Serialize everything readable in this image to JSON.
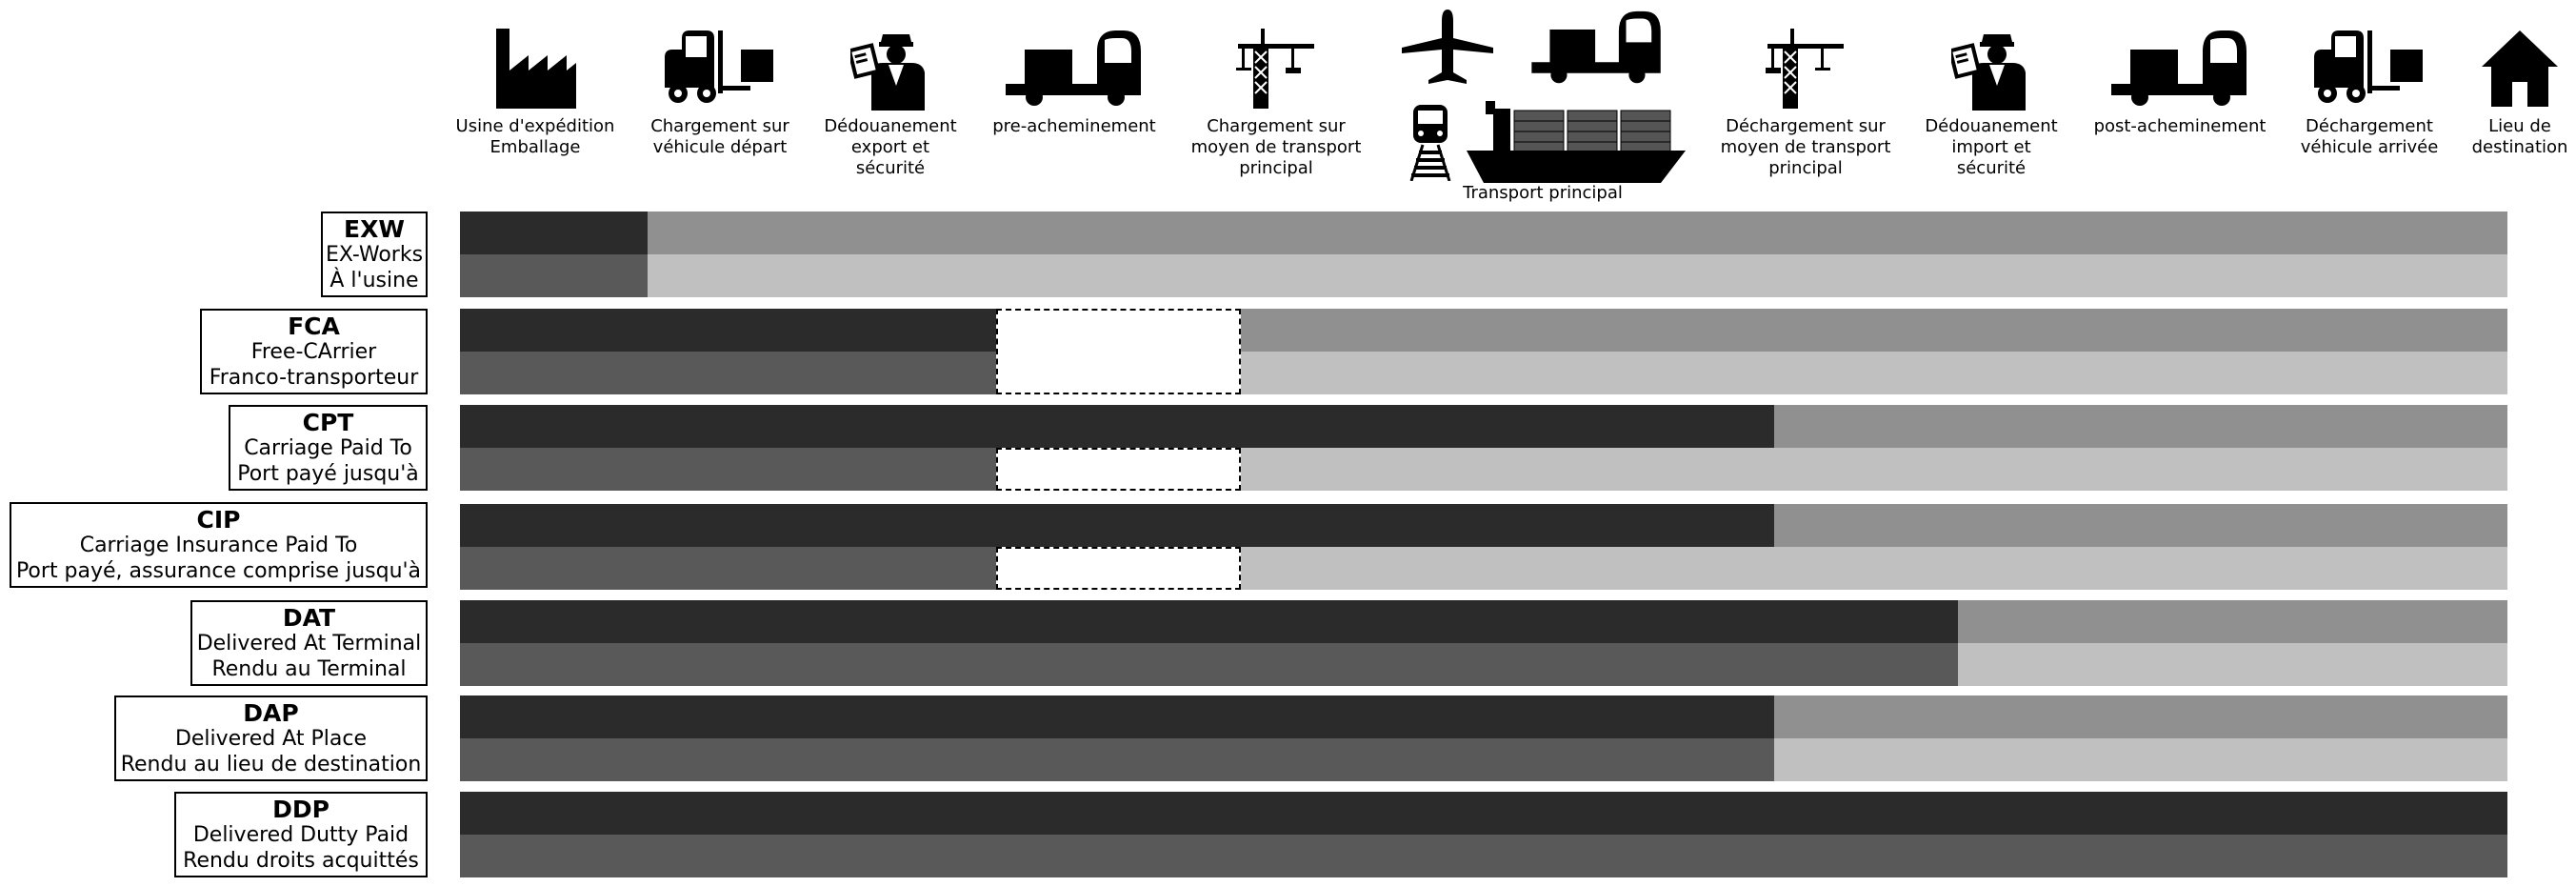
{
  "stages": [
    {
      "key": "factory",
      "label": "Usine d'expédition\nEmballage",
      "icon": "factory-icon"
    },
    {
      "key": "loading",
      "label": "Chargement sur\nvéhicule départ",
      "icon": "forklift-icon"
    },
    {
      "key": "export",
      "label": "Dédouanement\nexport et\nsécurité",
      "icon": "customs-officer-icon"
    },
    {
      "key": "pre",
      "label": "pre-acheminement",
      "icon": "truck-icon"
    },
    {
      "key": "load-main",
      "label": "Chargement sur\nmoyen de transport\nprincipal",
      "icon": "crane-icon"
    },
    {
      "key": "main",
      "label": "Transport principal",
      "icon": "main-transport-icons"
    },
    {
      "key": "unload-main",
      "label": "Déchargement sur\nmoyen de transport\nprincipal",
      "icon": "crane-icon"
    },
    {
      "key": "import",
      "label": "Dédouanement\nimport et\nsécurité",
      "icon": "customs-officer-icon"
    },
    {
      "key": "post",
      "label": "post-acheminement",
      "icon": "truck-icon"
    },
    {
      "key": "unloading",
      "label": "Déchargement\nvéhicule arrivée",
      "icon": "forklift-icon"
    },
    {
      "key": "dest",
      "label": "Lieu de\ndestination",
      "icon": "house-icon"
    }
  ],
  "terms": [
    {
      "code": "EXW",
      "en": "EX-Works",
      "fr": "À l'usine",
      "cost_split": 0.0917,
      "risk_split": 0.0917,
      "insurance_box": false
    },
    {
      "code": "FCA",
      "en": "Free-CArrier",
      "fr": "Franco-transporteur",
      "cost_split": 0.3813,
      "risk_split": 0.3813,
      "insurance_box": true
    },
    {
      "code": "CPT",
      "en": "Carriage Paid To",
      "fr": "Port payé jusqu'à",
      "cost_split": 0.6419,
      "risk_split": 0.2619,
      "insurance_box": true
    },
    {
      "code": "CIP",
      "en": "Carriage Insurance Paid To",
      "fr": "Port payé, assurance comprise jusqu'à",
      "cost_split": 0.6419,
      "risk_split": 0.2619,
      "insurance_box": true
    },
    {
      "code": "DAT",
      "en": "Delivered At Terminal",
      "fr": "Rendu au Terminal",
      "cost_split": 0.7316,
      "risk_split": 0.7316,
      "insurance_box": false
    },
    {
      "code": "DAP",
      "en": "Delivered At Place",
      "fr": "Rendu au lieu de destination",
      "cost_split": 0.6419,
      "risk_split": 0.6419,
      "insurance_box": false
    },
    {
      "code": "DDP",
      "en": "Delivered Dutty Paid",
      "fr": "Rendu droits acquittés",
      "cost_split": 1.0,
      "risk_split": 1.0,
      "insurance_box": false
    }
  ],
  "colors": {
    "seller_cost": "#2b2b2b",
    "seller_risk": "#595959",
    "buyer_cost": "#909090",
    "buyer_risk": "#c0c0c0"
  }
}
